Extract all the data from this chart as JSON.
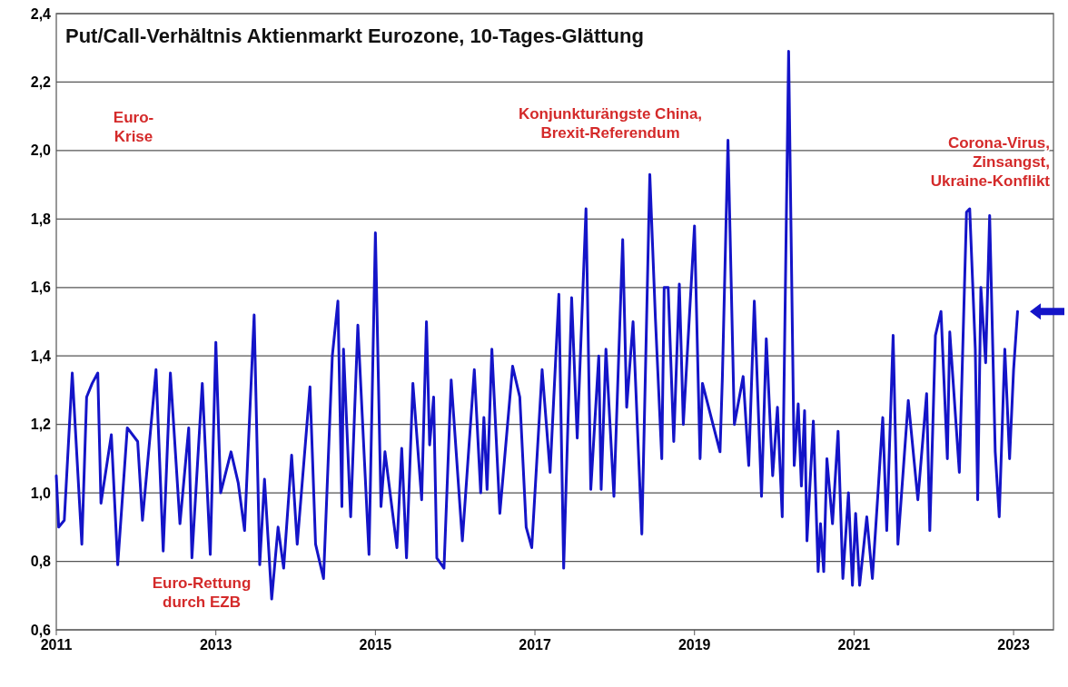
{
  "chart_data": {
    "type": "line",
    "title": "Put/Call-Verhältnis Aktienmarkt Eurozone, 10-Tages-Glättung",
    "series": [
      {
        "color": "#1414c8",
        "x": [
          2011.0,
          2011.03,
          2011.1,
          2011.2,
          2011.32,
          2011.38,
          2011.45,
          2011.52,
          2011.56,
          2011.69,
          2011.77,
          2011.89,
          2012.02,
          2012.08,
          2012.25,
          2012.34,
          2012.43,
          2012.55,
          2012.66,
          2012.7,
          2012.83,
          2012.93,
          2013.0,
          2013.06,
          2013.19,
          2013.28,
          2013.36,
          2013.48,
          2013.55,
          2013.61,
          2013.7,
          2013.78,
          2013.85,
          2013.95,
          2014.02,
          2014.18,
          2014.25,
          2014.35,
          2014.46,
          2014.53,
          2014.58,
          2014.6,
          2014.69,
          2014.78,
          2014.92,
          2015.0,
          2015.07,
          2015.12,
          2015.27,
          2015.33,
          2015.39,
          2015.47,
          2015.58,
          2015.64,
          2015.68,
          2015.73,
          2015.77,
          2015.86,
          2015.95,
          2016.09,
          2016.24,
          2016.32,
          2016.36,
          2016.4,
          2016.46,
          2016.56,
          2016.72,
          2016.81,
          2016.89,
          2016.96,
          2017.09,
          2017.19,
          2017.3,
          2017.36,
          2017.46,
          2017.53,
          2017.64,
          2017.7,
          2017.8,
          2017.83,
          2017.89,
          2017.99,
          2018.1,
          2018.15,
          2018.23,
          2018.34,
          2018.44,
          2018.51,
          2018.59,
          2018.62,
          2018.67,
          2018.74,
          2018.81,
          2018.86,
          2019.0,
          2019.07,
          2019.1,
          2019.32,
          2019.35,
          2019.42,
          2019.5,
          2019.61,
          2019.68,
          2019.75,
          2019.84,
          2019.9,
          2019.98,
          2020.04,
          2020.1,
          2020.18,
          2020.25,
          2020.3,
          2020.34,
          2020.38,
          2020.41,
          2020.49,
          2020.55,
          2020.58,
          2020.62,
          2020.66,
          2020.73,
          2020.8,
          2020.86,
          2020.93,
          2020.98,
          2021.02,
          2021.07,
          2021.16,
          2021.23,
          2021.3,
          2021.36,
          2021.41,
          2021.49,
          2021.55,
          2021.68,
          2021.8,
          2021.91,
          2021.95,
          2022.02,
          2022.09,
          2022.17,
          2022.2,
          2022.32,
          2022.41,
          2022.45,
          2022.52,
          2022.55,
          2022.59,
          2022.65,
          2022.7,
          2022.77,
          2022.82,
          2022.89,
          2022.95,
          2023.0,
          2023.05
        ],
        "values": [
          1.05,
          0.9,
          0.92,
          1.35,
          0.85,
          1.28,
          1.32,
          1.35,
          0.97,
          1.17,
          0.79,
          1.19,
          1.15,
          0.92,
          1.36,
          0.83,
          1.35,
          0.91,
          1.19,
          0.81,
          1.32,
          0.82,
          1.44,
          1.0,
          1.12,
          1.03,
          0.89,
          1.52,
          0.79,
          1.04,
          0.69,
          0.9,
          0.78,
          1.11,
          0.85,
          1.31,
          0.85,
          0.75,
          1.4,
          1.56,
          0.96,
          1.42,
          0.93,
          1.49,
          0.82,
          1.76,
          0.96,
          1.12,
          0.84,
          1.13,
          0.81,
          1.32,
          0.98,
          1.5,
          1.14,
          1.28,
          0.81,
          0.78,
          1.33,
          0.86,
          1.36,
          1.0,
          1.22,
          1.01,
          1.42,
          0.94,
          1.37,
          1.28,
          0.9,
          0.84,
          1.36,
          1.06,
          1.58,
          0.78,
          1.57,
          1.16,
          1.83,
          1.01,
          1.4,
          1.01,
          1.42,
          0.99,
          1.74,
          1.25,
          1.5,
          0.88,
          1.93,
          1.51,
          1.1,
          1.6,
          1.6,
          1.15,
          1.61,
          1.2,
          1.78,
          1.1,
          1.32,
          1.12,
          1.34,
          2.03,
          1.2,
          1.34,
          1.08,
          1.56,
          0.99,
          1.45,
          1.05,
          1.25,
          0.93,
          2.29,
          1.08,
          1.26,
          1.02,
          1.24,
          0.86,
          1.21,
          0.77,
          0.91,
          0.77,
          1.1,
          0.91,
          1.18,
          0.75,
          1.0,
          0.73,
          0.94,
          0.73,
          0.93,
          0.75,
          1.0,
          1.22,
          0.89,
          1.46,
          0.85,
          1.27,
          0.98,
          1.29,
          0.89,
          1.46,
          1.53,
          1.1,
          1.47,
          1.06,
          1.82,
          1.83,
          1.42,
          0.98,
          1.6,
          1.38,
          1.81,
          1.12,
          0.93,
          1.42,
          1.1,
          1.36,
          1.53
        ]
      }
    ],
    "xlim": [
      2011,
      2023.5
    ],
    "xticks": [
      2011,
      2013,
      2015,
      2017,
      2019,
      2021,
      2023
    ],
    "ylim": [
      0.6,
      2.4
    ],
    "yticks": [
      {
        "value": 0.6,
        "label": "0,6"
      },
      {
        "value": 0.8,
        "label": "0,8"
      },
      {
        "value": 1.0,
        "label": "1,0"
      },
      {
        "value": 1.2,
        "label": "1,2"
      },
      {
        "value": 1.4,
        "label": "1,4"
      },
      {
        "value": 1.6,
        "label": "1,6"
      },
      {
        "value": 1.8,
        "label": "1,8"
      },
      {
        "value": 2.0,
        "label": "2,0"
      },
      {
        "value": 2.2,
        "label": "2,2"
      },
      {
        "value": 2.4,
        "label": "2,4"
      }
    ],
    "grid": "y",
    "marker": "none",
    "line_style": "solid",
    "annotations": [
      "Euro-\nKrise",
      "Euro-Rettung\ndurch EZB",
      "Konjunkturängste China,\nBrexit-Referendum",
      "Corona-Virus,\nZinsangst,\nUkraine-Konflikt"
    ]
  }
}
